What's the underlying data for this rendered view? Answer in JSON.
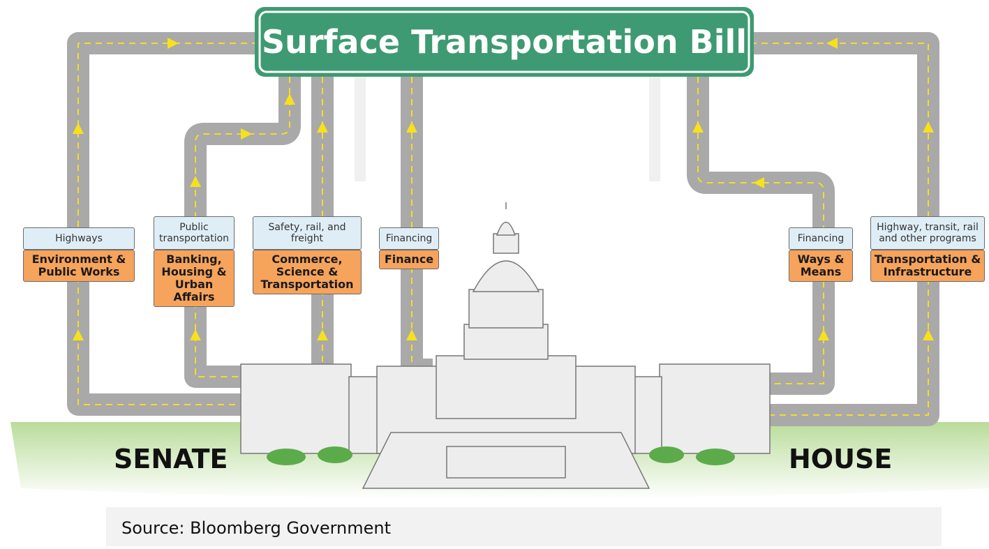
{
  "title": "Surface Transportation Bill",
  "committees": [
    {
      "topic": "Highways",
      "name": "Environment & Public Works"
    },
    {
      "topic": "Public transportation",
      "name": "Banking, Housing & Urban Affairs"
    },
    {
      "topic": "Safety, rail, and freight",
      "name": "Commerce, Science & Transportation"
    },
    {
      "topic": "Financing",
      "name": "Finance"
    },
    {
      "topic": "Financing",
      "name": "Ways & Means"
    },
    {
      "topic": "Highway, transit, rail and other programs",
      "name": "Transportation & Infrastructure"
    }
  ],
  "chambers": {
    "senate": "SENATE",
    "house": "HOUSE"
  },
  "source": "Source: Bloomberg Government"
}
